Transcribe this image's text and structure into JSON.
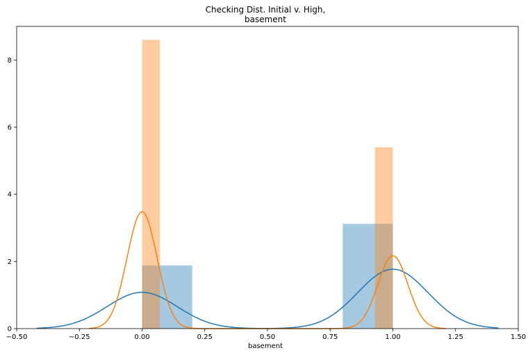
{
  "chart_data": {
    "type": "bar",
    "title_lines": [
      "Checking Dist. Initial v. High,",
      "basement"
    ],
    "xlabel": "basement",
    "ylabel": "",
    "xlim": [
      -0.5,
      1.5
    ],
    "ylim": [
      0,
      9
    ],
    "xticks": [
      -0.5,
      -0.25,
      0.0,
      0.25,
      0.5,
      0.75,
      1.0,
      1.25,
      1.5
    ],
    "xtick_labels": [
      "−0.50",
      "−0.25",
      "0.00",
      "0.25",
      "0.50",
      "0.75",
      "1.00",
      "1.25",
      "1.50"
    ],
    "yticks": [
      0,
      2,
      4,
      6,
      8
    ],
    "ytick_labels": [
      "0",
      "2",
      "4",
      "6",
      "8"
    ],
    "grid": false,
    "legend": "none",
    "series": [
      {
        "color": "#1f77b4",
        "bar_opacity": 0.4,
        "bars": [
          {
            "x0": 0.0,
            "x1": 0.2,
            "height": 1.88
          },
          {
            "x0": 0.8,
            "x1": 1.0,
            "height": 3.12
          }
        ],
        "kde": {
          "components": [
            {
              "mean": 0.0,
              "sd": 0.14,
              "peak": 1.08
            },
            {
              "mean": 1.0,
              "sd": 0.14,
              "peak": 1.77
            }
          ],
          "range": [
            -0.42,
            1.42
          ]
        }
      },
      {
        "color": "#ff7f0e",
        "bar_opacity": 0.4,
        "bars": [
          {
            "x0": 0.0,
            "x1": 0.0714,
            "height": 8.6
          },
          {
            "x0": 0.9286,
            "x1": 1.0,
            "height": 5.4
          }
        ],
        "kde": {
          "components": [
            {
              "mean": 0.0,
              "sd": 0.06,
              "peak": 3.48
            },
            {
              "mean": 1.0,
              "sd": 0.06,
              "peak": 2.17
            }
          ],
          "range": [
            -0.21,
            1.21
          ]
        }
      }
    ]
  }
}
